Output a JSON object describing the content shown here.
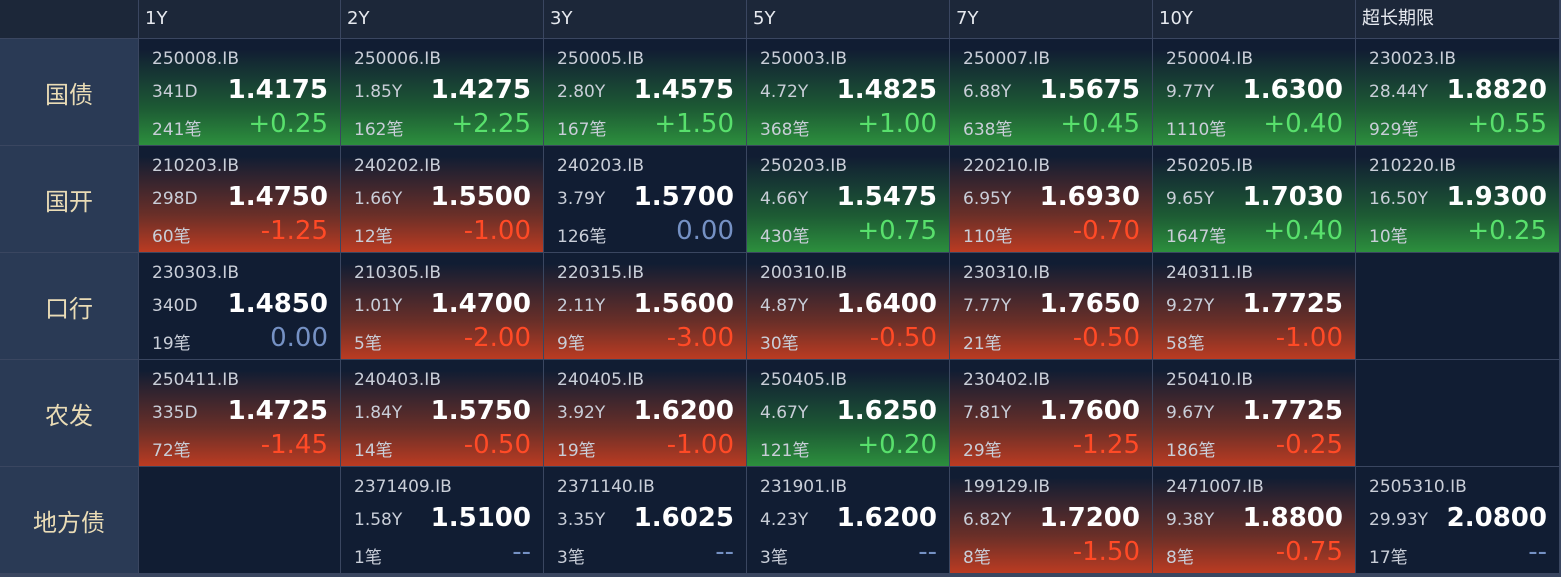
{
  "header": {
    "columns": [
      "1Y",
      "2Y",
      "3Y",
      "5Y",
      "7Y",
      "10Y",
      "超长期限"
    ]
  },
  "rows": [
    {
      "label": "国债",
      "cells": [
        {
          "code": "250008.IB",
          "term": "341D",
          "yield": "1.4175",
          "count": "241笔",
          "change": "+0.25"
        },
        {
          "code": "250006.IB",
          "term": "1.85Y",
          "yield": "1.4275",
          "count": "162笔",
          "change": "+2.25"
        },
        {
          "code": "250005.IB",
          "term": "2.80Y",
          "yield": "1.4575",
          "count": "167笔",
          "change": "+1.50"
        },
        {
          "code": "250003.IB",
          "term": "4.72Y",
          "yield": "1.4825",
          "count": "368笔",
          "change": "+1.00"
        },
        {
          "code": "250007.IB",
          "term": "6.88Y",
          "yield": "1.5675",
          "count": "638笔",
          "change": "+0.45"
        },
        {
          "code": "250004.IB",
          "term": "9.77Y",
          "yield": "1.6300",
          "count": "1110笔",
          "change": "+0.40"
        },
        {
          "code": "230023.IB",
          "term": "28.44Y",
          "yield": "1.8820",
          "count": "929笔",
          "change": "+0.55"
        }
      ]
    },
    {
      "label": "国开",
      "cells": [
        {
          "code": "210203.IB",
          "term": "298D",
          "yield": "1.4750",
          "count": "60笔",
          "change": "-1.25"
        },
        {
          "code": "240202.IB",
          "term": "1.66Y",
          "yield": "1.5500",
          "count": "12笔",
          "change": "-1.00"
        },
        {
          "code": "240203.IB",
          "term": "3.79Y",
          "yield": "1.5700",
          "count": "126笔",
          "change": "0.00"
        },
        {
          "code": "250203.IB",
          "term": "4.66Y",
          "yield": "1.5475",
          "count": "430笔",
          "change": "+0.75"
        },
        {
          "code": "220210.IB",
          "term": "6.95Y",
          "yield": "1.6930",
          "count": "110笔",
          "change": "-0.70"
        },
        {
          "code": "250205.IB",
          "term": "9.65Y",
          "yield": "1.7030",
          "count": "1647笔",
          "change": "+0.40"
        },
        {
          "code": "210220.IB",
          "term": "16.50Y",
          "yield": "1.9300",
          "count": "10笔",
          "change": "+0.25"
        }
      ]
    },
    {
      "label": "口行",
      "cells": [
        {
          "code": "230303.IB",
          "term": "340D",
          "yield": "1.4850",
          "count": "19笔",
          "change": "0.00"
        },
        {
          "code": "210305.IB",
          "term": "1.01Y",
          "yield": "1.4700",
          "count": "5笔",
          "change": "-2.00"
        },
        {
          "code": "220315.IB",
          "term": "2.11Y",
          "yield": "1.5600",
          "count": "9笔",
          "change": "-3.00"
        },
        {
          "code": "200310.IB",
          "term": "4.87Y",
          "yield": "1.6400",
          "count": "30笔",
          "change": "-0.50"
        },
        {
          "code": "230310.IB",
          "term": "7.77Y",
          "yield": "1.7650",
          "count": "21笔",
          "change": "-0.50"
        },
        {
          "code": "240311.IB",
          "term": "9.27Y",
          "yield": "1.7725",
          "count": "58笔",
          "change": "-1.00"
        },
        null
      ]
    },
    {
      "label": "农发",
      "cells": [
        {
          "code": "250411.IB",
          "term": "335D",
          "yield": "1.4725",
          "count": "72笔",
          "change": "-1.45"
        },
        {
          "code": "240403.IB",
          "term": "1.84Y",
          "yield": "1.5750",
          "count": "14笔",
          "change": "-0.50"
        },
        {
          "code": "240405.IB",
          "term": "3.92Y",
          "yield": "1.6200",
          "count": "19笔",
          "change": "-1.00"
        },
        {
          "code": "250405.IB",
          "term": "4.67Y",
          "yield": "1.6250",
          "count": "121笔",
          "change": "+0.20"
        },
        {
          "code": "230402.IB",
          "term": "7.81Y",
          "yield": "1.7600",
          "count": "29笔",
          "change": "-1.25"
        },
        {
          "code": "250410.IB",
          "term": "9.67Y",
          "yield": "1.7725",
          "count": "186笔",
          "change": "-0.25"
        },
        null
      ]
    },
    {
      "label": "地方债",
      "cells": [
        null,
        {
          "code": "2371409.IB",
          "term": "1.58Y",
          "yield": "1.5100",
          "count": "1笔",
          "change": "--"
        },
        {
          "code": "2371140.IB",
          "term": "3.35Y",
          "yield": "1.6025",
          "count": "3笔",
          "change": "--"
        },
        {
          "code": "231901.IB",
          "term": "4.23Y",
          "yield": "1.6200",
          "count": "3笔",
          "change": "--"
        },
        {
          "code": "199129.IB",
          "term": "6.82Y",
          "yield": "1.7200",
          "count": "8笔",
          "change": "-1.50"
        },
        {
          "code": "2471007.IB",
          "term": "9.38Y",
          "yield": "1.8800",
          "count": "8笔",
          "change": "-0.75"
        },
        {
          "code": "2505310.IB",
          "term": "29.93Y",
          "yield": "2.0800",
          "count": "17笔",
          "change": "--"
        }
      ]
    }
  ]
}
